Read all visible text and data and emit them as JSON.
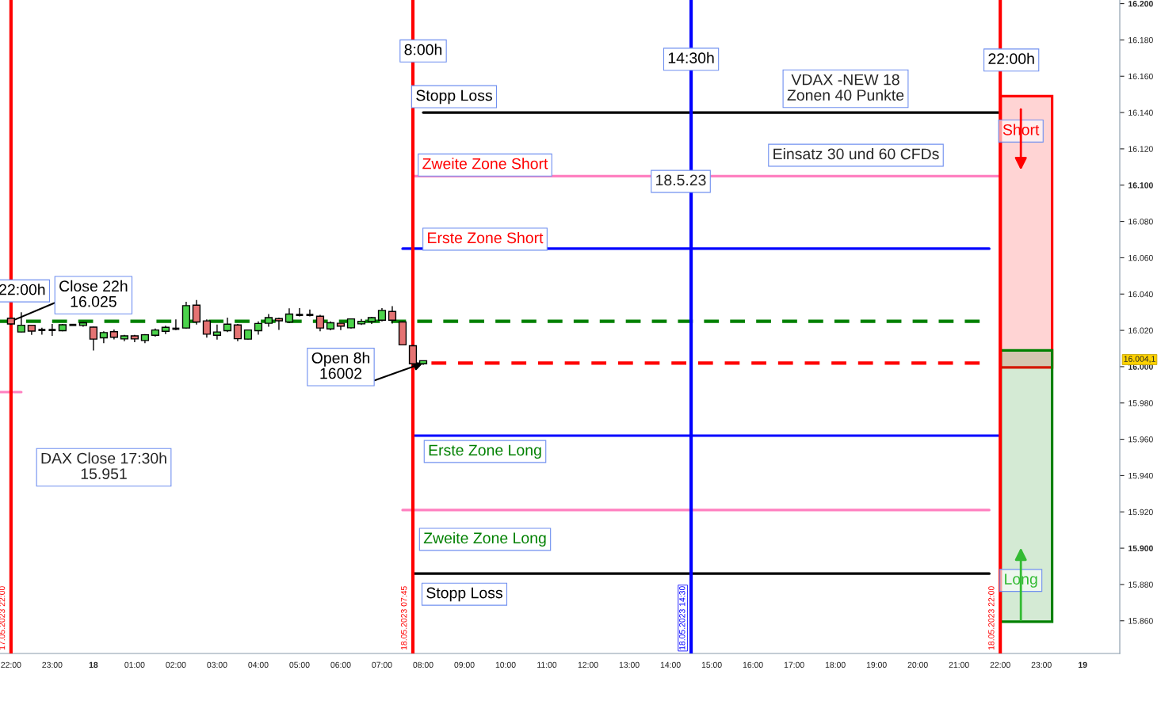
{
  "chart_data": {
    "type": "candlestick",
    "x": [
      "2023-05-17T22:00",
      "2023-05-17T22:15",
      "2023-05-17T22:30",
      "2023-05-17T22:45",
      "2023-05-17T23:00",
      "2023-05-17T23:15",
      "2023-05-17T23:30",
      "2023-05-17T23:45",
      "2023-05-18T00:00",
      "2023-05-18T00:15",
      "2023-05-18T00:30",
      "2023-05-18T00:45",
      "2023-05-18T01:00",
      "2023-05-18T01:15",
      "2023-05-18T01:30",
      "2023-05-18T01:45",
      "2023-05-18T02:00",
      "2023-05-18T02:15",
      "2023-05-18T02:30",
      "2023-05-18T02:45",
      "2023-05-18T03:00",
      "2023-05-18T03:15",
      "2023-05-18T03:30",
      "2023-05-18T03:45",
      "2023-05-18T04:00",
      "2023-05-18T04:15",
      "2023-05-18T04:30",
      "2023-05-18T04:45",
      "2023-05-18T05:00",
      "2023-05-18T05:15",
      "2023-05-18T05:30",
      "2023-05-18T05:45",
      "2023-05-18T06:00",
      "2023-05-18T06:15",
      "2023-05-18T06:30",
      "2023-05-18T06:45",
      "2023-05-18T07:00",
      "2023-05-18T07:15",
      "2023-05-18T07:30",
      "2023-05-18T07:45",
      "2023-05-18T08:00"
    ],
    "ohlc": [
      [
        16026.7,
        16027,
        16023,
        16023.5
      ],
      [
        16019.1,
        16030,
        16019,
        16022.8
      ],
      [
        16022.8,
        16023,
        16017.5,
        16019.6
      ],
      [
        16020.2,
        16021.5,
        16017.6,
        16020.2
      ],
      [
        16020.2,
        16023.5,
        16017,
        16020.2
      ],
      [
        16019.8,
        16023.5,
        16019.5,
        16023.1
      ],
      [
        16023,
        16023.2,
        16022.8,
        16023
      ],
      [
        16022.7,
        16024.5,
        16022,
        16024.2
      ],
      [
        16021.8,
        16022,
        16008.9,
        16015.2
      ],
      [
        16015.9,
        16019.5,
        16013,
        16018.8
      ],
      [
        16019.3,
        16020.5,
        16015,
        16016.2
      ],
      [
        16015.3,
        16017.5,
        16014,
        16017
      ],
      [
        16017,
        16017.5,
        16013.5,
        16015.3
      ],
      [
        16014.4,
        16018,
        16013,
        16017.6
      ],
      [
        16017.3,
        16021,
        16016.5,
        16020.2
      ],
      [
        16019.5,
        16022.5,
        16018,
        16021.7
      ],
      [
        16020.9,
        16026,
        16020.2,
        16020.9
      ],
      [
        16021.3,
        16035.8,
        16021,
        16033.6
      ],
      [
        16033.9,
        16036.7,
        16023.2,
        16024.6
      ],
      [
        16025.2,
        16026,
        16016,
        16017.9
      ],
      [
        16017.3,
        16023.2,
        16014.9,
        16019.1
      ],
      [
        16019.8,
        16027,
        16019.1,
        16023.4
      ],
      [
        16023,
        16023.5,
        16014,
        16015.4
      ],
      [
        16015.2,
        16020.5,
        16015,
        16020.2
      ],
      [
        16019.8,
        16025,
        16017.6,
        16023.8
      ],
      [
        16023.9,
        16029,
        16022,
        16027
      ],
      [
        16026.5,
        16027,
        16020.3,
        16025.3
      ],
      [
        16024.6,
        16032.2,
        16024,
        16029
      ],
      [
        16028.5,
        16032.3,
        16027.7,
        16028.5
      ],
      [
        16028.5,
        16031.5,
        16027.7,
        16028.5
      ],
      [
        16027.8,
        16028.5,
        16019.5,
        16021.3
      ],
      [
        16020.8,
        16025,
        16020,
        16024.2
      ],
      [
        16023.9,
        16024,
        16020.2,
        16022.3
      ],
      [
        16021.4,
        16026.5,
        16021,
        16026.3
      ],
      [
        16023.6,
        16026.3,
        16023,
        16025
      ],
      [
        16024.9,
        16027.5,
        16023.5,
        16027
      ],
      [
        16025.6,
        16032.3,
        16025,
        16031
      ],
      [
        16030.4,
        16033.3,
        16023.8,
        16025.6
      ],
      [
        16024.6,
        16025,
        16011.7,
        16012
      ],
      [
        16011.5,
        16012,
        16000,
        16001.6
      ],
      [
        16001.6,
        16003.5,
        16001,
        16003.3
      ]
    ],
    "series": [
      {
        "type": "line",
        "color": "#000000",
        "x": [
          "2023-05-18T08:00",
          "2023-05-18T22:00"
        ],
        "values": [
          16140,
          16140
        ]
      },
      {
        "type": "line",
        "color": "#ff80c0",
        "x": [
          "2023-05-18T07:45",
          "2023-05-18T22:00"
        ],
        "values": [
          16105,
          16105
        ]
      },
      {
        "type": "line",
        "color": "#0000ff",
        "x": [
          "2023-05-18T07:30",
          "2023-05-18T21:44"
        ],
        "values": [
          16065,
          16065
        ]
      },
      {
        "type": "line",
        "color": "#008000",
        "line_style": "dashed",
        "x": [
          "2023-05-17T21:44",
          "2023-05-18T21:30"
        ],
        "values": [
          16025,
          16025
        ]
      },
      {
        "type": "line",
        "color": "#ff0000",
        "line_style": "dashed",
        "x": [
          "2023-05-18T08:12",
          "2023-05-18T21:30"
        ],
        "values": [
          16002,
          16002
        ]
      },
      {
        "type": "line",
        "color": "#0000ff",
        "x": [
          "2023-05-18T07:45",
          "2023-05-18T22:00"
        ],
        "values": [
          15962,
          15962
        ]
      },
      {
        "type": "line",
        "color": "#ff80c0",
        "x": [
          "2023-05-18T07:30",
          "2023-05-18T21:44"
        ],
        "values": [
          15921,
          15921
        ]
      },
      {
        "type": "line",
        "color": "#000000",
        "x": [
          "2023-05-18T07:45",
          "2023-05-18T21:44"
        ],
        "values": [
          15886,
          15886
        ]
      },
      {
        "type": "line",
        "color": "#ff80c0",
        "x": [
          "2023-05-17T21:44",
          "2023-05-17T22:15"
        ],
        "values": [
          15986,
          15986
        ]
      },
      {
        "type": "bar",
        "color": "#ff0000",
        "x": [
          "2023-05-18T22:38"
        ],
        "base": [
          15999.6
        ],
        "values": [
          149.4
        ]
      },
      {
        "type": "bar",
        "color": "#008000",
        "x": [
          "2023-05-18T22:38"
        ],
        "base": [
          15859.5
        ],
        "values": [
          149.5
        ]
      }
    ],
    "xlim": [
      "2023-05-17T21:44",
      "2023-05-19T00:54"
    ],
    "ylim": [
      15842,
      16202
    ],
    "xticks": [
      {
        "value": "2023-05-17T22:00",
        "label": "22:00"
      },
      {
        "value": "2023-05-17T23:00",
        "label": "23:00"
      },
      {
        "value": "2023-05-18T00:00",
        "label": "18"
      },
      {
        "value": "2023-05-18T01:00",
        "label": "01:00"
      },
      {
        "value": "2023-05-18T02:00",
        "label": "02:00"
      },
      {
        "value": "2023-05-18T03:00",
        "label": "03:00"
      },
      {
        "value": "2023-05-18T04:00",
        "label": "04:00"
      },
      {
        "value": "2023-05-18T05:00",
        "label": "05:00"
      },
      {
        "value": "2023-05-18T06:00",
        "label": "06:00"
      },
      {
        "value": "2023-05-18T07:00",
        "label": "07:00"
      },
      {
        "value": "2023-05-18T08:00",
        "label": "08:00"
      },
      {
        "value": "2023-05-18T09:00",
        "label": "09:00"
      },
      {
        "value": "2023-05-18T10:00",
        "label": "10:00"
      },
      {
        "value": "2023-05-18T11:00",
        "label": "11:00"
      },
      {
        "value": "2023-05-18T12:00",
        "label": "12:00"
      },
      {
        "value": "2023-05-18T13:00",
        "label": "13:00"
      },
      {
        "value": "2023-05-18T14:00",
        "label": "14:00"
      },
      {
        "value": "2023-05-18T15:00",
        "label": "15:00"
      },
      {
        "value": "2023-05-18T16:00",
        "label": "16:00"
      },
      {
        "value": "2023-05-18T17:00",
        "label": "17:00"
      },
      {
        "value": "2023-05-18T18:00",
        "label": "18:00"
      },
      {
        "value": "2023-05-18T19:00",
        "label": "19:00"
      },
      {
        "value": "2023-05-18T20:00",
        "label": "20:00"
      },
      {
        "value": "2023-05-18T21:00",
        "label": "21:00"
      },
      {
        "value": "2023-05-18T22:00",
        "label": "22:00"
      },
      {
        "value": "2023-05-18T23:00",
        "label": "23:00"
      },
      {
        "value": "2023-05-19T00:00",
        "label": "19"
      }
    ],
    "yticks": [
      {
        "value": 15860,
        "label": "15.860"
      },
      {
        "value": 15880,
        "label": "15.880"
      },
      {
        "value": 15900,
        "label": "15.900"
      },
      {
        "value": 15920,
        "label": "15.920"
      },
      {
        "value": 15940,
        "label": "15.940"
      },
      {
        "value": 15960,
        "label": "15.960"
      },
      {
        "value": 15980,
        "label": "15.980"
      },
      {
        "value": 16000,
        "label": "16.000"
      },
      {
        "value": 16020,
        "label": "16.020"
      },
      {
        "value": 16040,
        "label": "16.040"
      },
      {
        "value": 16060,
        "label": "16.060"
      },
      {
        "value": 16080,
        "label": "16.080"
      },
      {
        "value": 16100,
        "label": "16.100"
      },
      {
        "value": 16120,
        "label": "16.120"
      },
      {
        "value": 16140,
        "label": "16.140"
      },
      {
        "value": 16160,
        "label": "16.160"
      },
      {
        "value": 16180,
        "label": "16.180"
      },
      {
        "value": 16200,
        "label": "16.200"
      }
    ],
    "ref_lines": [
      {
        "axis": "x",
        "value": "2023-05-17T22:00",
        "label": "17.05.2023 22:00",
        "color": "#ff0000"
      },
      {
        "axis": "x",
        "value": "2023-05-18T07:45",
        "label": "18.05.2023 07:45",
        "color": "#ff0000"
      },
      {
        "axis": "x",
        "value": "2023-05-18T14:30",
        "label": "18.05.2023 14:30",
        "color": "#0000ff"
      },
      {
        "axis": "x",
        "value": "2023-05-18T22:00",
        "label": "18.05.2023 22:00",
        "color": "#ff0000"
      }
    ],
    "annotations": [
      {
        "text": "22:00h",
        "x": "2023-05-17T22:00",
        "y": 16040
      },
      {
        "text": "Close 22h\n16.025",
        "x": "2023-05-17T22:00",
        "y": 16025
      },
      {
        "text": "8:00h",
        "x": "2023-05-18T07:45",
        "y": 16170
      },
      {
        "text": "14:30h",
        "x": "2023-05-18T14:30",
        "y": 16165
      },
      {
        "text": "22:00h",
        "x": "2023-05-18T22:00",
        "y": 16165
      },
      {
        "text": "Stopp Loss",
        "x": "2023-05-18T08:00",
        "y": 16140
      },
      {
        "text": "Zweite Zone Short",
        "x": "2023-05-18T08:00",
        "y": 16105
      },
      {
        "text": "Erste Zone Short",
        "x": "2023-05-18T08:00",
        "y": 16065
      },
      {
        "text": "Open 8h\n16002",
        "x": "2023-05-18T08:00",
        "y": 16002
      },
      {
        "text": "Erste Zone Long",
        "x": "2023-05-18T08:00",
        "y": 15962
      },
      {
        "text": "Zweite Zone Long",
        "x": "2023-05-18T08:00",
        "y": 15921
      },
      {
        "text": "Stopp Loss",
        "x": "2023-05-18T08:00",
        "y": 15886
      },
      {
        "text": "Short",
        "x": "2023-05-18T22:30",
        "y": 16149
      },
      {
        "text": "Long",
        "x": "2023-05-18T22:30",
        "y": 15860
      },
      "VDAX -NEW 18\nZonen 40 Punkte",
      "Einsatz 30 und 60 CFDs",
      "18.5.23",
      "DAX Close 17:30h\n15.951",
      "16.004,1"
    ],
    "grid": false
  }
}
